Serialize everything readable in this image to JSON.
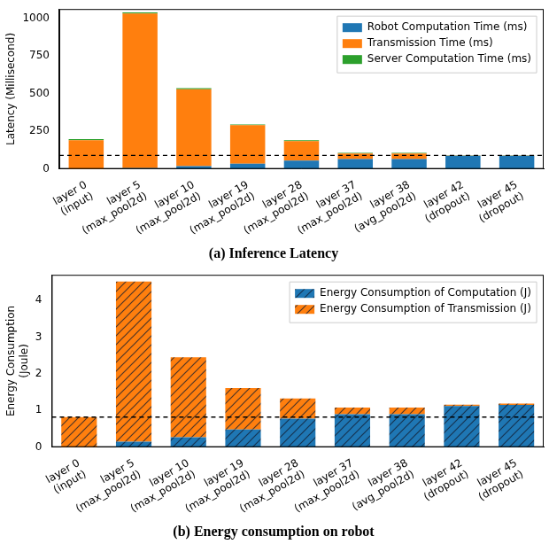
{
  "chart_data": [
    {
      "type": "bar",
      "title": "(a) Inference Latency",
      "ylabel": [
        "Latency (Millisecond)"
      ],
      "categories": [
        [
          "layer 0",
          "(input)"
        ],
        [
          "layer 5",
          "(max_pool2d)"
        ],
        [
          "layer 10",
          "(max_pool2d)"
        ],
        [
          "layer 19",
          "(max_pool2d)"
        ],
        [
          "layer 28",
          "(max_pool2d)"
        ],
        [
          "layer 37",
          "(max_pool2d)"
        ],
        [
          "layer 38",
          "(avg_pool2d)"
        ],
        [
          "layer 42",
          "(dropout)"
        ],
        [
          "layer 45",
          "(dropout)"
        ]
      ],
      "series": [
        {
          "name": "Robot Computation Time (ms)",
          "color": "#1f77b4",
          "values": [
            0,
            5,
            18,
            35,
            55,
            65,
            65,
            88,
            88
          ]
        },
        {
          "name": "Transmission Time (ms)",
          "color": "#ff7f0e",
          "values": [
            190,
            1025,
            510,
            255,
            130,
            38,
            38,
            1,
            1
          ]
        },
        {
          "name": "Server Computation Time (ms)",
          "color": "#2ca02c",
          "values": [
            8,
            8,
            8,
            5,
            5,
            4,
            4,
            1,
            1
          ]
        }
      ],
      "reference_line": 90,
      "ylim": [
        0,
        1060
      ],
      "yticks": [
        0,
        250,
        500,
        750,
        1000
      ],
      "stacked": true,
      "legend": "upper right",
      "grid": false
    },
    {
      "type": "bar",
      "title": "(b) Energy consumption on robot",
      "ylabel": [
        "Energy Consumption",
        "(Joule)"
      ],
      "categories": [
        [
          "layer 0",
          "(input)"
        ],
        [
          "layer 5",
          "(max_pool2d)"
        ],
        [
          "layer 10",
          "(max_pool2d)"
        ],
        [
          "layer 19",
          "(max_pool2d)"
        ],
        [
          "layer 28",
          "(max_pool2d)"
        ],
        [
          "layer 37",
          "(max_pool2d)"
        ],
        [
          "layer 38",
          "(avg_pool2d)"
        ],
        [
          "layer 42",
          "(dropout)"
        ],
        [
          "layer 45",
          "(dropout)"
        ]
      ],
      "series": [
        {
          "name": "Energy Consumption of Computation (J)",
          "color": "#1f77b4",
          "values": [
            0,
            0.15,
            0.27,
            0.48,
            0.78,
            0.9,
            0.9,
            1.12,
            1.15
          ]
        },
        {
          "name": "Energy Consumption of Transmission (J)",
          "color": "#ff7f0e",
          "values": [
            0.82,
            4.37,
            2.18,
            1.13,
            0.55,
            0.18,
            0.18,
            0.04,
            0.04
          ]
        }
      ],
      "reference_line": 0.82,
      "ylim": [
        0,
        4.7
      ],
      "yticks": [
        0,
        1,
        2,
        3,
        4
      ],
      "stacked": true,
      "legend": "upper right",
      "grid": false
    }
  ]
}
